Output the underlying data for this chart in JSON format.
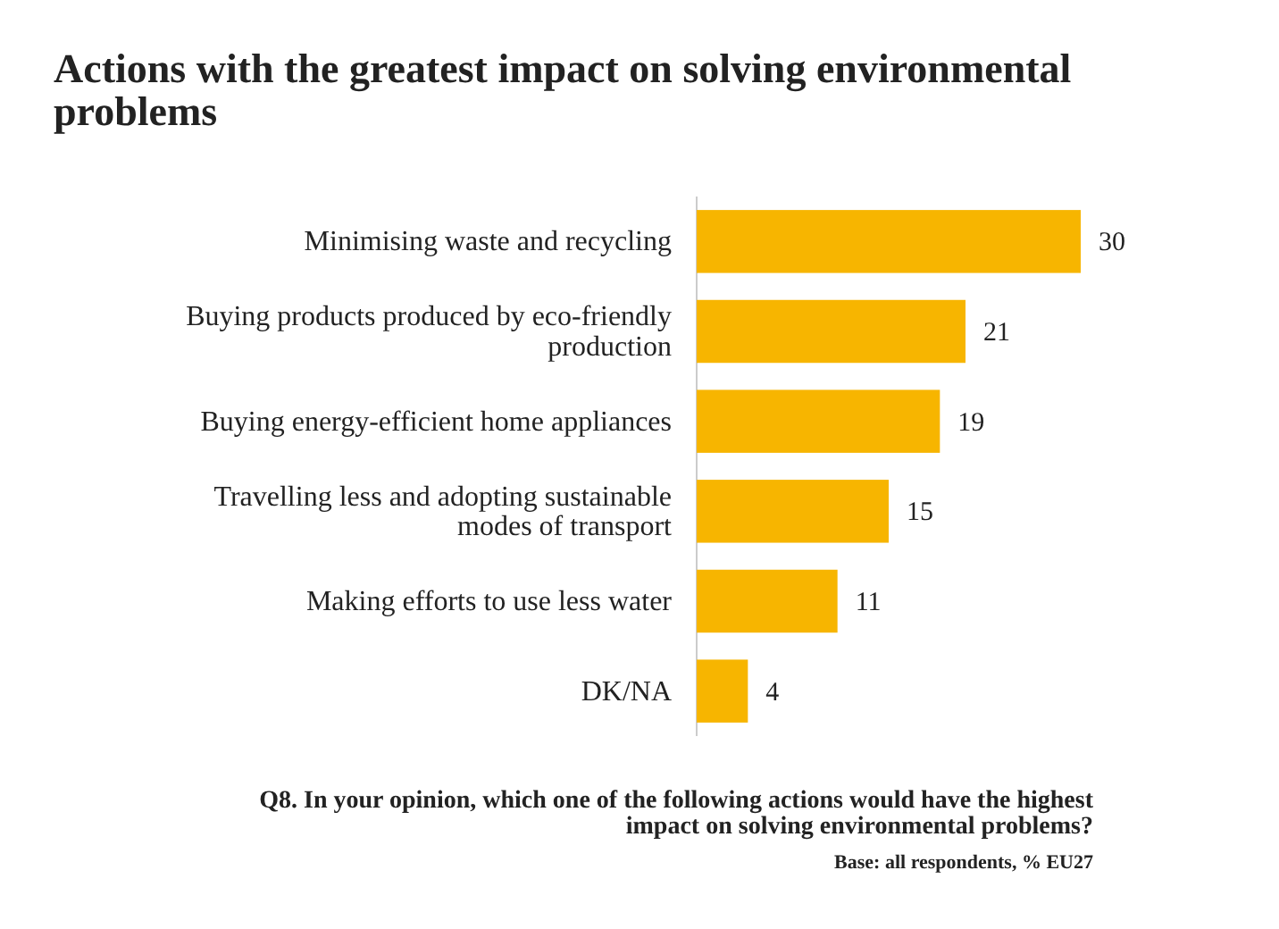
{
  "chart_data": {
    "type": "bar",
    "orientation": "horizontal",
    "title": "Actions with the greatest impact on solving environmental problems",
    "categories": [
      "Minimising waste and recycling",
      "Buying products produced by eco-friendly production",
      "Buying energy-efficient home appliances",
      "Travelling less and adopting sustainable modes of transport",
      "Making efforts to use less water",
      "DK/NA"
    ],
    "values": [
      30,
      21,
      19,
      15,
      11,
      4
    ],
    "color": "#f7b500",
    "data_labels": true,
    "annotations": [
      "Q8. In your opinion, which one of the following actions would have the highest impact on solving environmental problems?",
      "Base: all respondents, % EU27"
    ]
  }
}
